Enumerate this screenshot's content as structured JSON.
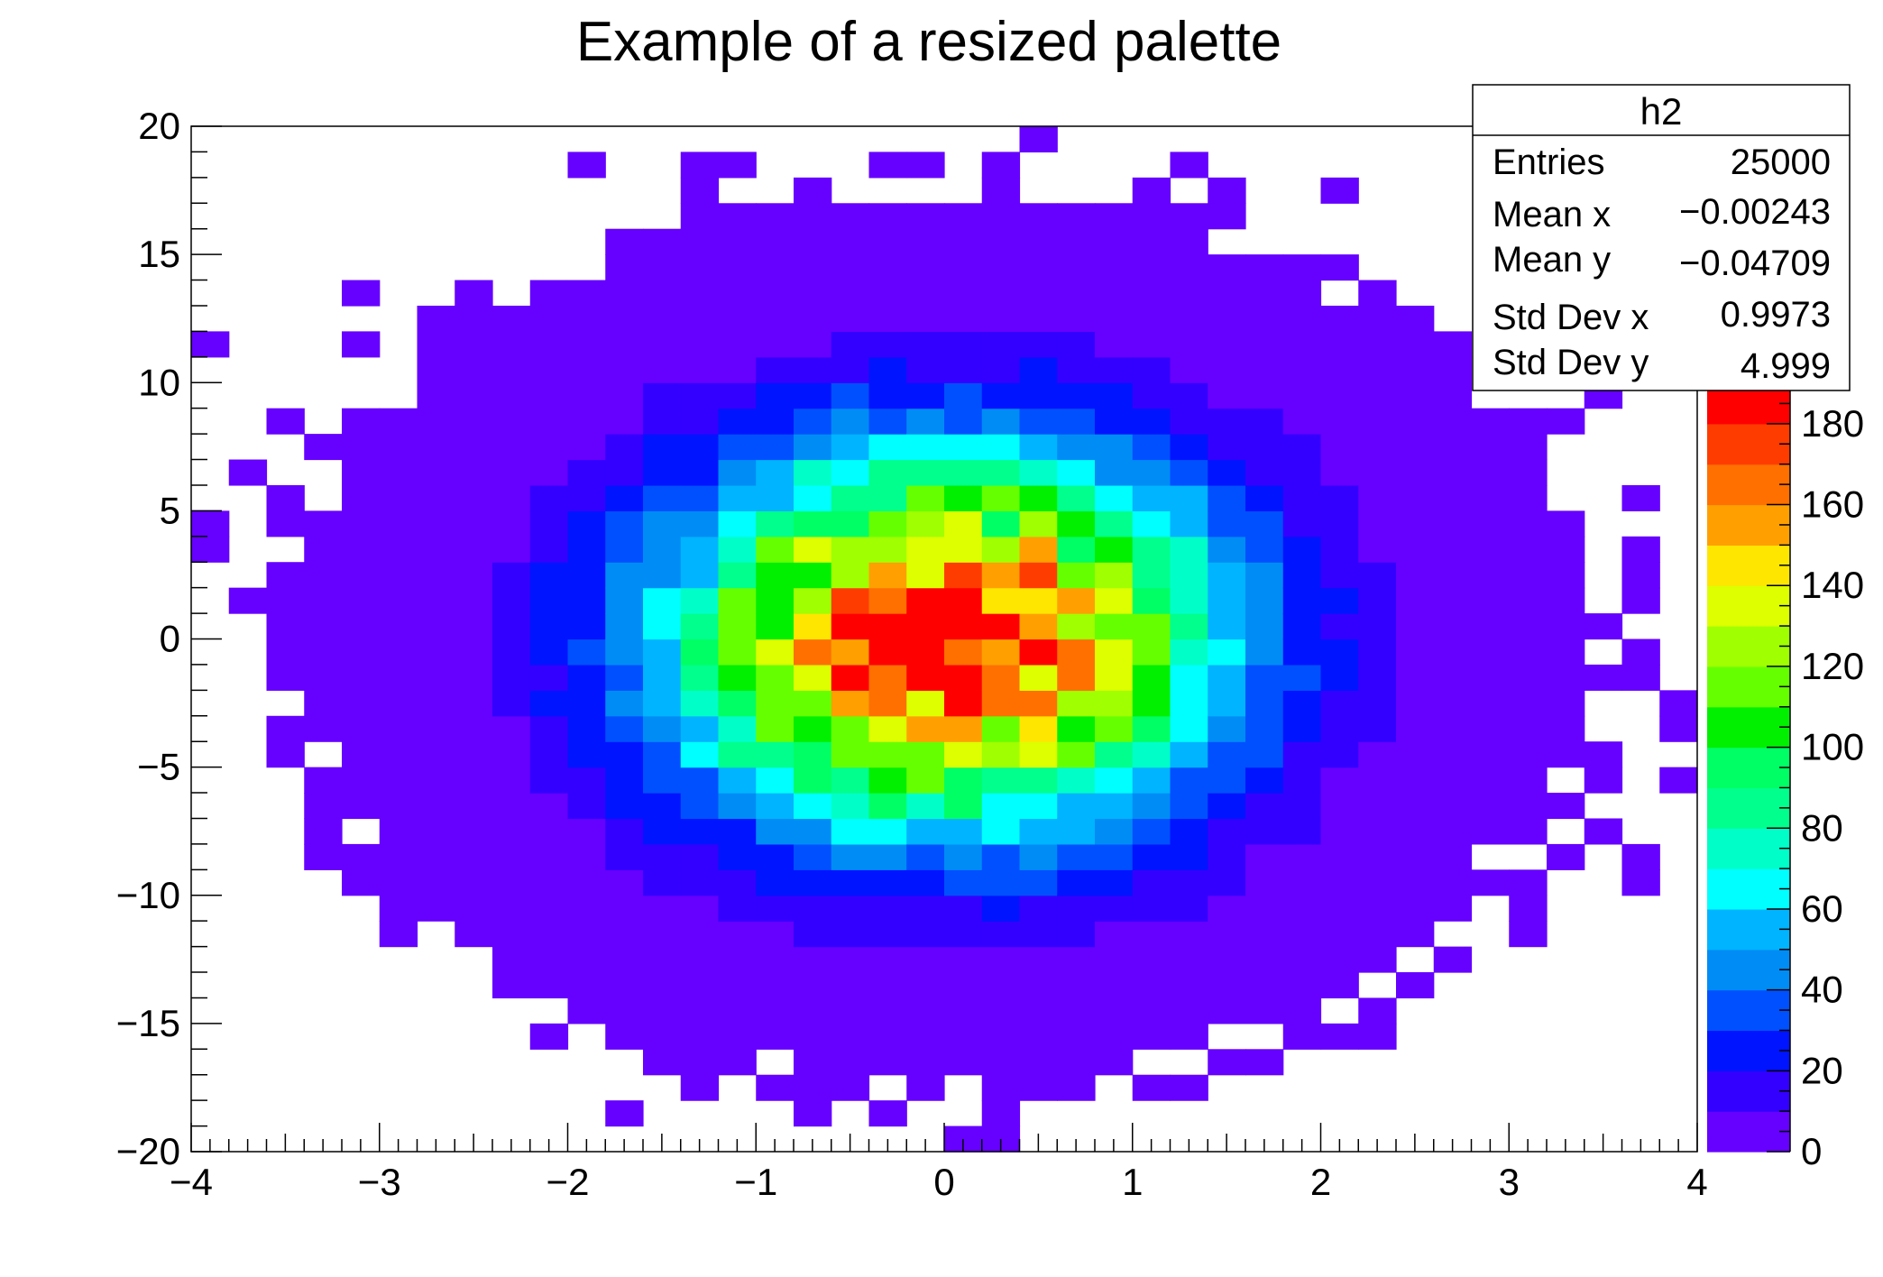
{
  "chart_data": {
    "type": "heatmap",
    "title": "Example of a resized palette",
    "xlabel": "",
    "ylabel": "",
    "xlim": [
      -4,
      4
    ],
    "ylim": [
      -20,
      20
    ],
    "x_ticks": [
      -4,
      -3,
      -2,
      -1,
      0,
      1,
      2,
      3,
      4
    ],
    "x_tick_labels": [
      "−4",
      "−3",
      "−2",
      "−1",
      "0",
      "1",
      "2",
      "3",
      "4"
    ],
    "y_ticks": [
      -20,
      -15,
      -10,
      -5,
      0,
      5,
      10,
      15,
      20
    ],
    "y_tick_labels": [
      "−20",
      "−15",
      "−10",
      "−5",
      "0",
      "5",
      "10",
      "15",
      "20"
    ],
    "bins": {
      "nx": 40,
      "x_min": -4,
      "x_max": 4,
      "ny": 40,
      "y_min": -20,
      "y_max": 20
    },
    "distribution": {
      "mean_x": -0.00243,
      "mean_y": -0.04709,
      "std_x": 0.9973,
      "std_y": 4.999,
      "peak_count": 190
    },
    "z_range": [
      0,
      190
    ],
    "palette_ticks": [
      0,
      20,
      40,
      60,
      80,
      100,
      120,
      140,
      160,
      180
    ],
    "palette_tick_labels": [
      "0",
      "20",
      "40",
      "60",
      "80",
      "100",
      "120",
      "140",
      "160",
      "180"
    ],
    "palette_colors": [
      "#6600ff",
      "#3300ff",
      "#0014ff",
      "#0050ff",
      "#008cf5",
      "#00b4ff",
      "#00ffff",
      "#00ffc8",
      "#00ff8c",
      "#00ff64",
      "#00f000",
      "#66ff00",
      "#a0ff00",
      "#ddff00",
      "#ffe600",
      "#ffa000",
      "#ff7000",
      "#ff3c00",
      "#ff0000"
    ],
    "grid": false,
    "legend": "stats-box top-right",
    "stats": {
      "name": "h2",
      "rows": [
        {
          "label": "Entries",
          "value": "25000"
        },
        {
          "label": "Mean x",
          "value": "−0.00243"
        },
        {
          "label": "Mean y",
          "value": "−0.04709"
        },
        {
          "label": "Std Dev x",
          "value": "0.9973"
        },
        {
          "label": "Std Dev y",
          "value": "4.999"
        }
      ]
    }
  }
}
